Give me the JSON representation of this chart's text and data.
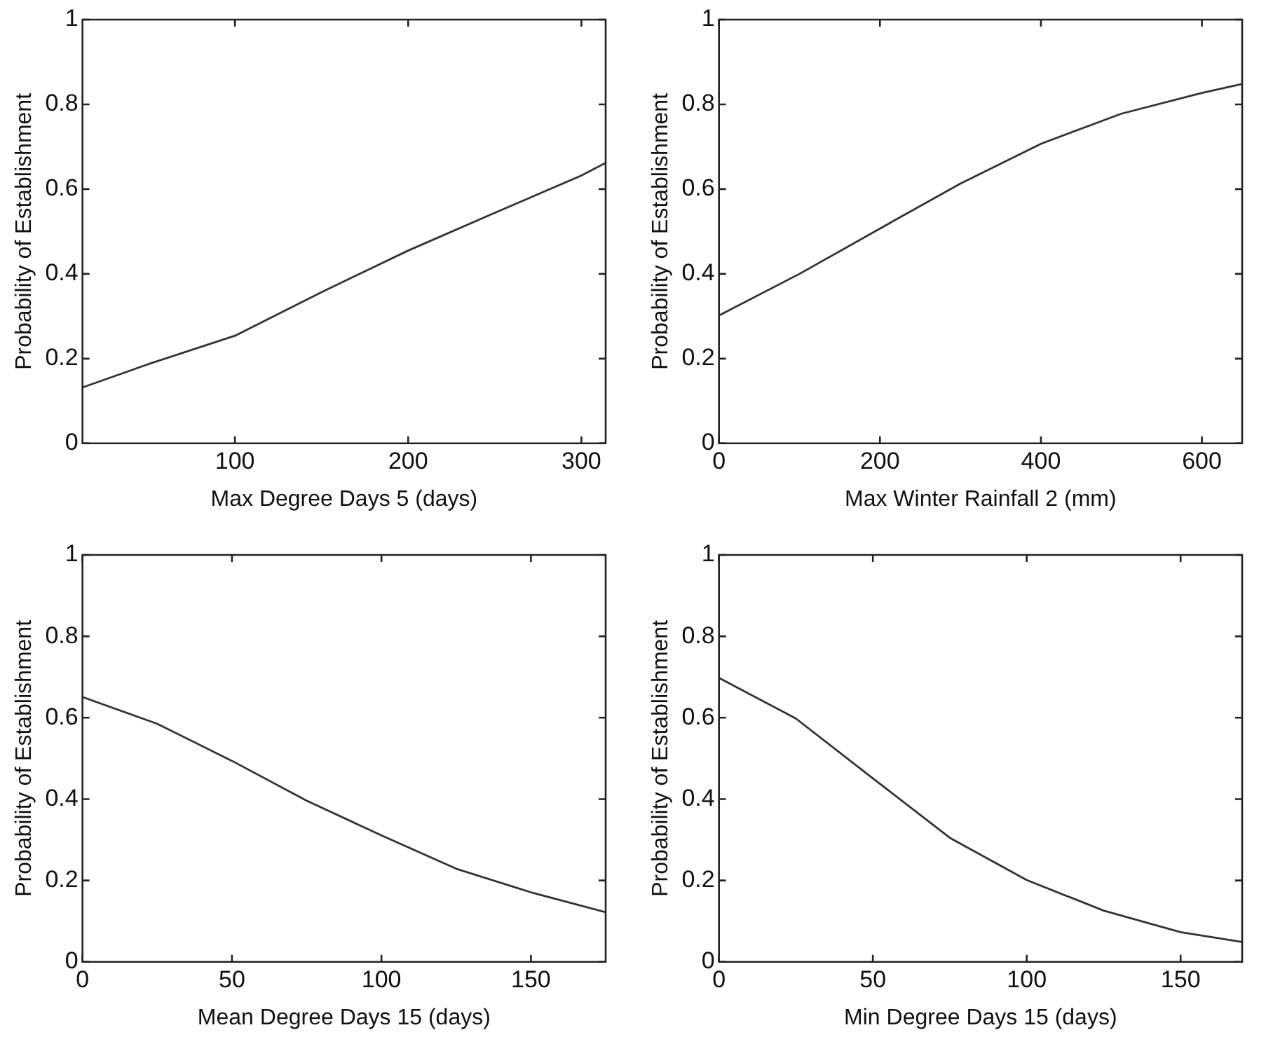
{
  "chart_data": [
    {
      "type": "line",
      "xlabel": "Max Degree Days 5 (days)",
      "ylabel": "Probability of Establishment",
      "marker": "none",
      "color": "#333333",
      "x": [
        12,
        50,
        100,
        150,
        200,
        250,
        300,
        314
      ],
      "values": [
        0.132,
        0.187,
        0.254,
        0.357,
        0.455,
        0.544,
        0.632,
        0.662
      ],
      "xlim": [
        12,
        314
      ],
      "xticks": [
        100,
        200,
        300
      ],
      "ylim": [
        0,
        1
      ],
      "yticks": [
        0,
        0.2,
        0.4,
        0.6,
        0.8,
        1
      ]
    },
    {
      "type": "line",
      "xlabel": "Max Winter Rainfall 2 (mm)",
      "ylabel": "Probability of Establishment",
      "marker": "none",
      "color": "#333333",
      "x": [
        0,
        100,
        200,
        300,
        400,
        500,
        600,
        650
      ],
      "values": [
        0.302,
        0.4,
        0.507,
        0.613,
        0.707,
        0.778,
        0.827,
        0.848
      ],
      "xlim": [
        0,
        650
      ],
      "xticks": [
        0,
        200,
        400,
        600
      ],
      "ylim": [
        0,
        1
      ],
      "yticks": [
        0,
        0.2,
        0.4,
        0.6,
        0.8,
        1
      ]
    },
    {
      "type": "line",
      "xlabel": "Mean Degree Days 15 (days)",
      "ylabel": "Probability of Establishment",
      "marker": "none",
      "color": "#333333",
      "x": [
        0,
        25,
        50,
        75,
        100,
        125,
        150,
        175
      ],
      "values": [
        0.651,
        0.585,
        0.494,
        0.396,
        0.311,
        0.229,
        0.171,
        0.122
      ],
      "xlim": [
        0,
        175
      ],
      "xticks": [
        0,
        50,
        100,
        150
      ],
      "ylim": [
        0,
        1
      ],
      "yticks": [
        0,
        0.2,
        0.4,
        0.6,
        0.8,
        1
      ]
    },
    {
      "type": "line",
      "xlabel": "Min Degree Days 15 (days)",
      "ylabel": "Probability of Establishment",
      "marker": "none",
      "color": "#333333",
      "x": [
        0,
        25,
        50,
        75,
        100,
        125,
        150,
        170
      ],
      "values": [
        0.698,
        0.598,
        0.451,
        0.305,
        0.201,
        0.126,
        0.073,
        0.049
      ],
      "xlim": [
        0,
        170
      ],
      "xticks": [
        0,
        50,
        100,
        150
      ],
      "ylim": [
        0,
        1
      ],
      "yticks": [
        0,
        0.2,
        0.4,
        0.6,
        0.8,
        1
      ]
    }
  ]
}
